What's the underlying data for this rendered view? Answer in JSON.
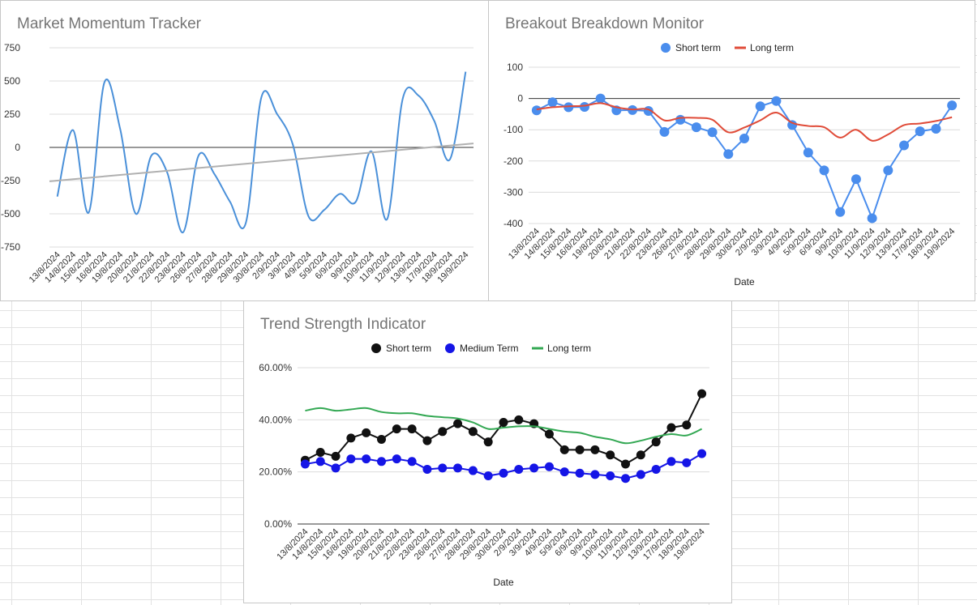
{
  "chart_data": [
    {
      "type": "line",
      "title": "Market Momentum Tracker",
      "xlabel": "",
      "ylabel": "",
      "categories": [
        "13/8/2024",
        "14/8/2024",
        "15/8/2024",
        "16/8/2024",
        "19/8/2024",
        "20/8/2024",
        "21/8/2024",
        "22/8/2024",
        "23/8/2024",
        "26/8/2024",
        "27/8/2024",
        "28/8/2024",
        "29/8/2024",
        "30/8/2024",
        "2/9/2024",
        "3/9/2024",
        "4/9/2024",
        "5/9/2024",
        "6/9/2024",
        "9/9/2024",
        "10/9/2024",
        "11/9/2024",
        "12/9/2024",
        "13/9/2024",
        "17/9/2024",
        "18/9/2024",
        "19/9/2024"
      ],
      "ylim": [
        -750,
        750
      ],
      "yticks": [
        "750",
        "500",
        "250",
        "0",
        "-250",
        "-500",
        "-750"
      ],
      "yticks_values": [
        750,
        500,
        250,
        0,
        -250,
        -500,
        -750
      ],
      "grid": true,
      "legend": "none",
      "series": [
        {
          "values": [
            -370,
            130,
            -490,
            490,
            140,
            -500,
            -60,
            -190,
            -640,
            -60,
            -200,
            -410,
            -570,
            380,
            250,
            20,
            -520,
            -470,
            -350,
            -410,
            -30,
            -540,
            370,
            390,
            200,
            -90,
            570
          ],
          "color": "#4a90d9",
          "smooth": true
        },
        {
          "trendline": true,
          "from": -255,
          "to": 30,
          "color": "#b0b0b0"
        }
      ]
    },
    {
      "type": "line",
      "title": "Breakout Breakdown Monitor",
      "xlabel": "Date",
      "ylabel": "",
      "categories": [
        "13/8/2024",
        "14/8/2024",
        "15/8/2024",
        "16/8/2024",
        "19/8/2024",
        "20/8/2024",
        "21/8/2024",
        "22/8/2024",
        "23/8/2024",
        "26/8/2024",
        "27/8/2024",
        "28/8/2024",
        "29/8/2024",
        "30/8/2024",
        "2/9/2024",
        "3/9/2024",
        "4/9/2024",
        "5/9/2024",
        "6/9/2024",
        "9/9/2024",
        "10/9/2024",
        "11/9/2024",
        "12/9/2024",
        "13/9/2024",
        "17/9/2024",
        "18/9/2024",
        "19/9/2024"
      ],
      "ylim": [
        -400,
        100
      ],
      "yticks": [
        "100",
        "0",
        "-100",
        "-200",
        "-300",
        "-400"
      ],
      "yticks_values": [
        100,
        0,
        -100,
        -200,
        -300,
        -400
      ],
      "grid": true,
      "legend": "top",
      "series": [
        {
          "name": "Short term",
          "style": "points-line",
          "color": "#4a8ded",
          "values": [
            -38,
            -12,
            -28,
            -27,
            0,
            -38,
            -37,
            -40,
            -107,
            -68,
            -92,
            -108,
            -178,
            -128,
            -25,
            -8,
            -85,
            -173,
            -230,
            -363,
            -258,
            -383,
            -230,
            -150,
            -105,
            -97,
            -22
          ]
        },
        {
          "name": "Long term",
          "style": "line",
          "color": "#e04b38",
          "values": [
            -35,
            -28,
            -25,
            -23,
            -15,
            -28,
            -35,
            -35,
            -70,
            -62,
            -62,
            -68,
            -108,
            -93,
            -70,
            -45,
            -78,
            -88,
            -92,
            -125,
            -100,
            -135,
            -115,
            -85,
            -80,
            -72,
            -60
          ]
        }
      ]
    },
    {
      "type": "line",
      "title": "Trend Strength Indicator",
      "xlabel": "Date",
      "ylabel": "",
      "categories": [
        "13/8/2024",
        "14/8/2024",
        "15/8/2024",
        "16/8/2024",
        "19/8/2024",
        "20/8/2024",
        "21/8/2024",
        "22/8/2024",
        "23/8/2024",
        "26/8/2024",
        "27/8/2024",
        "28/8/2024",
        "29/8/2024",
        "30/8/2024",
        "2/9/2024",
        "3/9/2024",
        "4/9/2024",
        "5/9/2024",
        "6/9/2024",
        "9/9/2024",
        "10/9/2024",
        "11/9/2024",
        "12/9/2024",
        "13/9/2024",
        "17/9/2024",
        "18/9/2024",
        "19/9/2024"
      ],
      "ylim": [
        0,
        0.6
      ],
      "yticks": [
        "60.00%",
        "40.00%",
        "20.00%",
        "0.00%"
      ],
      "yticks_values": [
        0.6,
        0.4,
        0.2,
        0
      ],
      "grid": true,
      "legend": "top",
      "series": [
        {
          "name": "Short term",
          "style": "points-line",
          "color": "#111111",
          "values": [
            0.245,
            0.275,
            0.26,
            0.33,
            0.35,
            0.325,
            0.365,
            0.365,
            0.32,
            0.355,
            0.385,
            0.355,
            0.315,
            0.39,
            0.4,
            0.385,
            0.345,
            0.285,
            0.285,
            0.285,
            0.265,
            0.23,
            0.265,
            0.315,
            0.37,
            0.38,
            0.5
          ]
        },
        {
          "name": "Medium Term",
          "style": "points-line",
          "color": "#1515e6",
          "values": [
            0.23,
            0.24,
            0.215,
            0.25,
            0.25,
            0.24,
            0.25,
            0.24,
            0.21,
            0.215,
            0.215,
            0.205,
            0.185,
            0.195,
            0.21,
            0.215,
            0.22,
            0.2,
            0.195,
            0.19,
            0.185,
            0.175,
            0.19,
            0.21,
            0.24,
            0.235,
            0.27
          ]
        },
        {
          "name": "Long term",
          "style": "line",
          "color": "#33a853",
          "values": [
            0.435,
            0.445,
            0.435,
            0.44,
            0.445,
            0.43,
            0.425,
            0.425,
            0.415,
            0.41,
            0.405,
            0.39,
            0.365,
            0.37,
            0.375,
            0.375,
            0.365,
            0.355,
            0.35,
            0.335,
            0.325,
            0.31,
            0.32,
            0.335,
            0.345,
            0.34,
            0.365
          ]
        }
      ]
    }
  ]
}
